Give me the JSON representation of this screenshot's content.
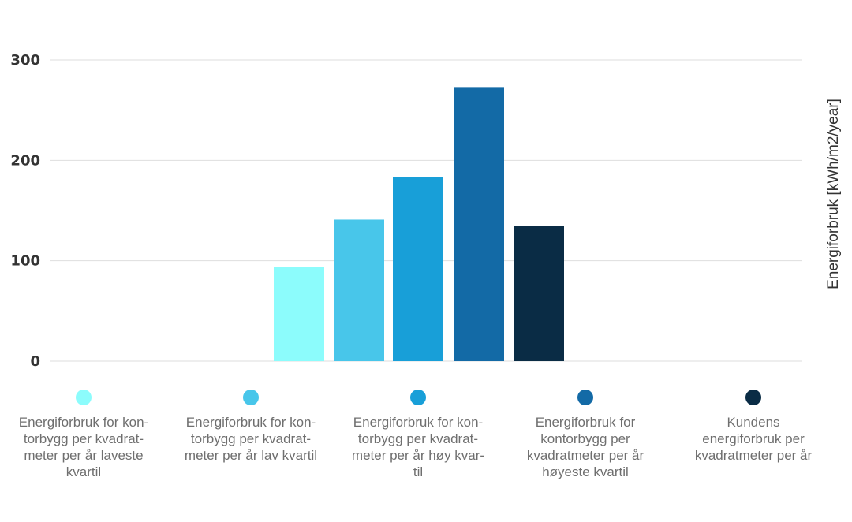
{
  "chart_data": {
    "type": "bar",
    "categories": [
      "Energiforbruk for kon-torbygg per kvadrat-meter per år laveste kvartil",
      "Energiforbruk for kon-torbygg per kvadrat-meter per år lav kvartil",
      "Energiforbruk for kon-torbygg per kvadrat-meter per år høy kvar-til",
      "Energiforbruk for kontorbygg per kvadratmeter per år høyeste kvartil",
      "Kundens energiforbruk per kvadratmeter per år"
    ],
    "values": [
      94,
      141,
      183,
      273,
      135
    ],
    "colors": [
      "#8cfcfc",
      "#48c6ea",
      "#189fd8",
      "#136aa6",
      "#0a2c45"
    ],
    "ylabel": "Energiforbruk [kWh/m2/year]",
    "ylim": [
      0,
      300
    ],
    "yticks": [
      "0",
      "100",
      "200",
      "300"
    ],
    "grid": true,
    "legend_position": "bottom"
  },
  "legend": [
    {
      "lines": [
        "Energiforbruk for kon-",
        "torbygg per kvadrat-",
        "meter per år laveste",
        "kvartil"
      ]
    },
    {
      "lines": [
        "Energiforbruk for kon-",
        "torbygg per kvadrat-",
        "meter per år lav kvartil"
      ]
    },
    {
      "lines": [
        "Energiforbruk for kon-",
        "torbygg per kvadrat-",
        "meter per år høy kvar-",
        "til"
      ]
    },
    {
      "lines": [
        "Energiforbruk for",
        "kontorbygg per",
        "kvadratmeter per år",
        "høyeste kvartil"
      ]
    },
    {
      "lines": [
        "Kundens",
        "energiforbruk per",
        "kvadratmeter per år"
      ]
    }
  ]
}
